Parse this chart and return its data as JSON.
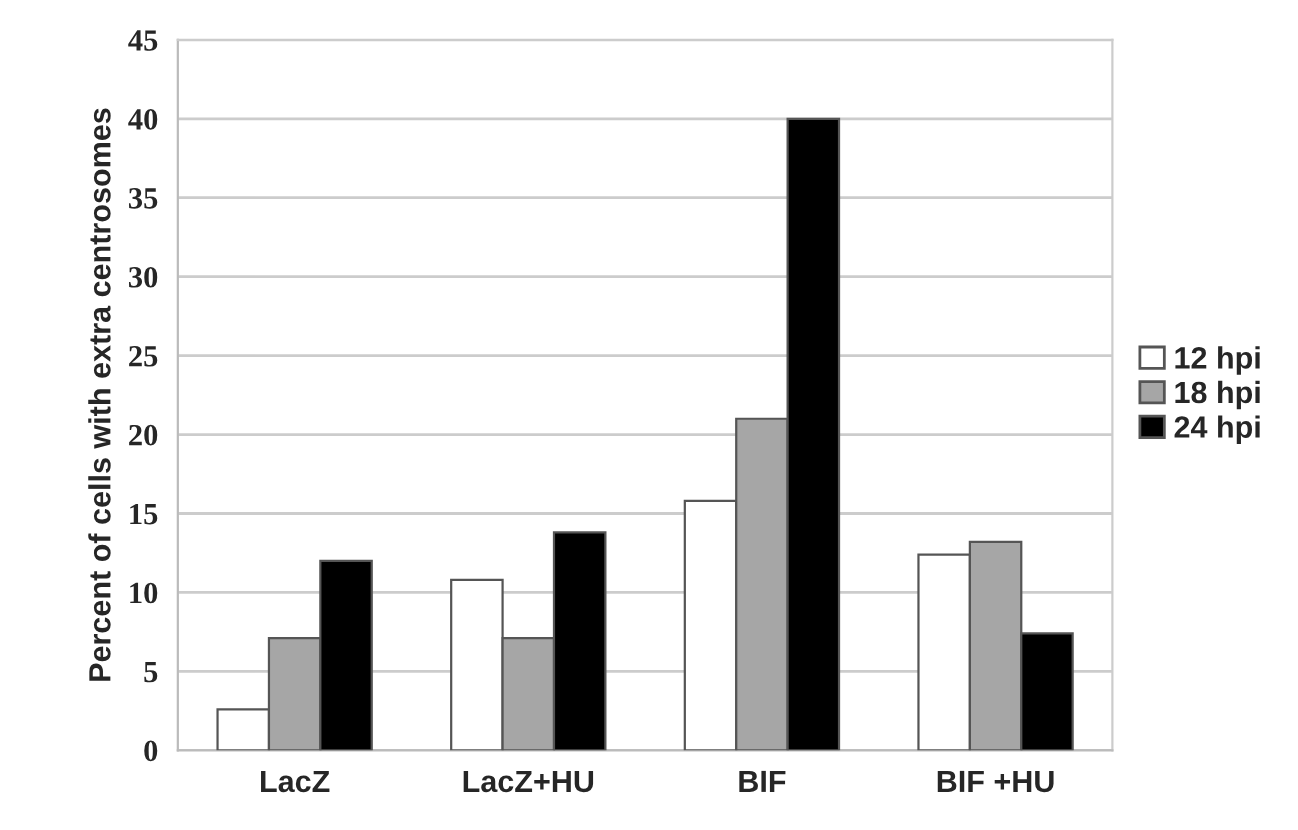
{
  "chart_data": {
    "type": "bar",
    "ylabel": "Percent of cells with extra centrosomes",
    "categories": [
      "LacZ",
      "LacZ+HU",
      "BIF",
      "BIF +HU"
    ],
    "series": [
      {
        "name": "12 hpi",
        "color": "#ffffff",
        "values": [
          2.6,
          10.8,
          15.8,
          12.4
        ]
      },
      {
        "name": "18 hpi",
        "color": "#a6a6a6",
        "values": [
          7.1,
          7.1,
          21,
          13.2
        ]
      },
      {
        "name": "24 hpi",
        "color": "#000000",
        "values": [
          12,
          13.8,
          40,
          7.4
        ]
      }
    ],
    "ylim": [
      0,
      45
    ],
    "yticks": [
      0,
      5,
      10,
      15,
      20,
      25,
      30,
      35,
      40,
      45
    ],
    "grid": "y",
    "legend": "right"
  }
}
